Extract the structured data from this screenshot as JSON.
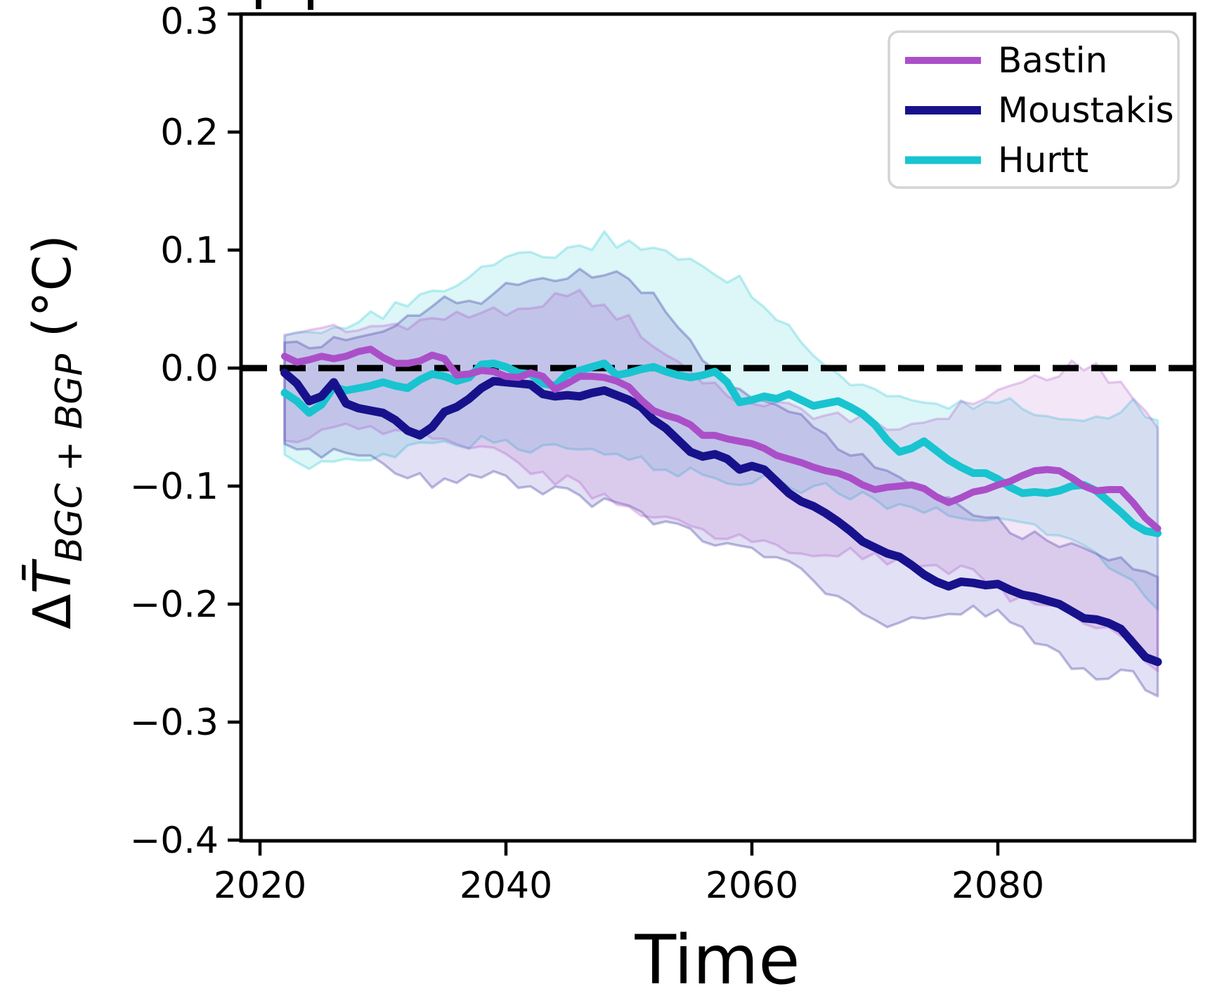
{
  "axes": {
    "xlabel": "Time",
    "ylabel": {
      "main": "ΔT",
      "overline_on_T": true,
      "subscript": "BGC + BGP",
      "unit": "(°C)"
    },
    "x_ticks": [
      {
        "label": "2020",
        "value": 2020
      },
      {
        "label": "2040",
        "value": 2040
      },
      {
        "label": "2060",
        "value": 2060
      },
      {
        "label": "2080",
        "value": 2080
      }
    ],
    "y_ticks": [
      {
        "label": "0.3",
        "value": 0.3
      },
      {
        "label": "0.2",
        "value": 0.2
      },
      {
        "label": "0.1",
        "value": 0.1
      },
      {
        "label": "0.0",
        "value": 0.0
      },
      {
        "label": "−0.1",
        "value": -0.1
      },
      {
        "label": "−0.2",
        "value": -0.2
      },
      {
        "label": "−0.3",
        "value": -0.3
      },
      {
        "label": "−0.4",
        "value": -0.4
      }
    ],
    "xlim": [
      2018.5,
      2096
    ],
    "ylim": [
      -0.4,
      0.3
    ]
  },
  "legend": {
    "position": "upper right",
    "entries": [
      {
        "label": "Bastin",
        "color": "#ab4fc9"
      },
      {
        "label": "Moustakis",
        "color": "#17128c"
      },
      {
        "label": "Hurtt",
        "color": "#18c4d0"
      }
    ]
  },
  "chart_data": {
    "type": "line",
    "title": "",
    "xlabel": "Time",
    "ylabel": "ΔT̄_BGC+BGP (°C)",
    "grid": false,
    "legend_position": "upper right",
    "xlim": [
      2018.5,
      2096
    ],
    "ylim": [
      -0.4,
      0.3
    ],
    "zero_line": {
      "value": 0.0,
      "style": "dashed",
      "color": "#000000"
    },
    "x": [
      2022,
      2023,
      2024,
      2025,
      2026,
      2027,
      2028,
      2029,
      2030,
      2031,
      2032,
      2033,
      2034,
      2035,
      2036,
      2037,
      2038,
      2039,
      2040,
      2041,
      2042,
      2043,
      2044,
      2045,
      2046,
      2047,
      2048,
      2049,
      2050,
      2051,
      2052,
      2053,
      2054,
      2055,
      2056,
      2057,
      2058,
      2059,
      2060,
      2061,
      2062,
      2063,
      2064,
      2065,
      2066,
      2067,
      2068,
      2069,
      2070,
      2071,
      2072,
      2073,
      2074,
      2075,
      2076,
      2077,
      2078,
      2079,
      2080,
      2081,
      2082,
      2083,
      2084,
      2085,
      2086,
      2087,
      2088,
      2089,
      2090,
      2091,
      2092,
      2093
    ],
    "series": [
      {
        "name": "Bastin",
        "color": "#ab4fc9",
        "band_fill": "rgba(171,79,201,0.14)",
        "linewidth": 10,
        "values": [
          0.01,
          0.005,
          0.007,
          0.01,
          0.008,
          0.01,
          0.014,
          0.016,
          0.009,
          0.004,
          0.004,
          0.006,
          0.011,
          0.008,
          -0.006,
          -0.005,
          -0.002,
          -0.003,
          -0.007,
          -0.008,
          -0.004,
          -0.007,
          -0.018,
          -0.013,
          -0.007,
          -0.007,
          -0.008,
          -0.011,
          -0.016,
          -0.027,
          -0.036,
          -0.04,
          -0.043,
          -0.048,
          -0.057,
          -0.057,
          -0.06,
          -0.062,
          -0.064,
          -0.068,
          -0.074,
          -0.077,
          -0.08,
          -0.084,
          -0.087,
          -0.089,
          -0.093,
          -0.099,
          -0.103,
          -0.101,
          -0.1,
          -0.099,
          -0.102,
          -0.109,
          -0.114,
          -0.11,
          -0.105,
          -0.103,
          -0.099,
          -0.096,
          -0.091,
          -0.087,
          -0.086,
          -0.087,
          -0.093,
          -0.1,
          -0.104,
          -0.103,
          -0.103,
          -0.114,
          -0.127,
          -0.136
        ],
        "band_upper": [
          [
            2022,
            0.032
          ],
          [
            2026,
            0.034
          ],
          [
            2030,
            0.036
          ],
          [
            2034,
            0.041
          ],
          [
            2038,
            0.046
          ],
          [
            2042,
            0.055
          ],
          [
            2046,
            0.061
          ],
          [
            2050,
            0.04
          ],
          [
            2052,
            0.02
          ],
          [
            2054,
            0.004
          ],
          [
            2056,
            -0.012
          ],
          [
            2058,
            -0.022
          ],
          [
            2062,
            -0.032
          ],
          [
            2066,
            -0.04
          ],
          [
            2070,
            -0.046
          ],
          [
            2074,
            -0.048
          ],
          [
            2078,
            -0.028
          ],
          [
            2082,
            -0.012
          ],
          [
            2086,
            0.002
          ],
          [
            2088,
            -0.001
          ],
          [
            2090,
            -0.012
          ],
          [
            2093,
            -0.05
          ]
        ],
        "band_lower": [
          [
            2022,
            -0.058
          ],
          [
            2026,
            -0.054
          ],
          [
            2030,
            -0.05
          ],
          [
            2034,
            -0.056
          ],
          [
            2038,
            -0.066
          ],
          [
            2042,
            -0.086
          ],
          [
            2046,
            -0.1
          ],
          [
            2050,
            -0.12
          ],
          [
            2054,
            -0.134
          ],
          [
            2058,
            -0.144
          ],
          [
            2062,
            -0.15
          ],
          [
            2066,
            -0.155
          ],
          [
            2070,
            -0.16
          ],
          [
            2074,
            -0.168
          ],
          [
            2078,
            -0.175
          ],
          [
            2082,
            -0.198
          ],
          [
            2086,
            -0.21
          ],
          [
            2090,
            -0.222
          ],
          [
            2093,
            -0.258
          ]
        ]
      },
      {
        "name": "Moustakis",
        "color": "#17128c",
        "band_fill": "rgba(73,62,187,0.16)",
        "linewidth": 12,
        "values": [
          -0.004,
          -0.013,
          -0.028,
          -0.024,
          -0.012,
          -0.03,
          -0.034,
          -0.036,
          -0.038,
          -0.044,
          -0.053,
          -0.057,
          -0.05,
          -0.037,
          -0.033,
          -0.026,
          -0.017,
          -0.011,
          -0.012,
          -0.013,
          -0.014,
          -0.022,
          -0.024,
          -0.023,
          -0.024,
          -0.021,
          -0.019,
          -0.023,
          -0.027,
          -0.033,
          -0.044,
          -0.051,
          -0.061,
          -0.071,
          -0.075,
          -0.073,
          -0.077,
          -0.086,
          -0.083,
          -0.086,
          -0.096,
          -0.106,
          -0.113,
          -0.117,
          -0.123,
          -0.13,
          -0.138,
          -0.147,
          -0.152,
          -0.157,
          -0.16,
          -0.167,
          -0.175,
          -0.181,
          -0.185,
          -0.181,
          -0.182,
          -0.184,
          -0.183,
          -0.188,
          -0.192,
          -0.194,
          -0.197,
          -0.2,
          -0.206,
          -0.212,
          -0.213,
          -0.216,
          -0.221,
          -0.233,
          -0.245,
          -0.249
        ],
        "band_upper": [
          [
            2022,
            0.016
          ],
          [
            2026,
            0.021
          ],
          [
            2030,
            0.03
          ],
          [
            2034,
            0.056
          ],
          [
            2038,
            0.06
          ],
          [
            2042,
            0.074
          ],
          [
            2046,
            0.083
          ],
          [
            2050,
            0.076
          ],
          [
            2054,
            0.04
          ],
          [
            2056,
            0.01
          ],
          [
            2058,
            -0.018
          ],
          [
            2062,
            -0.032
          ],
          [
            2066,
            -0.056
          ],
          [
            2070,
            -0.086
          ],
          [
            2074,
            -0.102
          ],
          [
            2078,
            -0.12
          ],
          [
            2082,
            -0.14
          ],
          [
            2086,
            -0.152
          ],
          [
            2090,
            -0.163
          ],
          [
            2093,
            -0.175
          ]
        ],
        "band_lower": [
          [
            2022,
            -0.064
          ],
          [
            2026,
            -0.072
          ],
          [
            2030,
            -0.082
          ],
          [
            2034,
            -0.096
          ],
          [
            2038,
            -0.09
          ],
          [
            2042,
            -0.1
          ],
          [
            2046,
            -0.11
          ],
          [
            2050,
            -0.12
          ],
          [
            2054,
            -0.135
          ],
          [
            2058,
            -0.148
          ],
          [
            2062,
            -0.16
          ],
          [
            2066,
            -0.188
          ],
          [
            2070,
            -0.21
          ],
          [
            2072,
            -0.22
          ],
          [
            2074,
            -0.21
          ],
          [
            2076,
            -0.206
          ],
          [
            2080,
            -0.208
          ],
          [
            2084,
            -0.24
          ],
          [
            2088,
            -0.258
          ],
          [
            2091,
            -0.258
          ],
          [
            2093,
            -0.28
          ]
        ]
      },
      {
        "name": "Hurtt",
        "color": "#18c4d0",
        "band_fill": "rgba(24,196,208,0.15)",
        "linewidth": 11,
        "values": [
          -0.021,
          -0.028,
          -0.038,
          -0.031,
          -0.016,
          -0.019,
          -0.017,
          -0.015,
          -0.012,
          -0.015,
          -0.017,
          -0.01,
          -0.005,
          -0.007,
          -0.011,
          -0.008,
          0.003,
          0.004,
          0.001,
          -0.004,
          -0.005,
          -0.013,
          -0.015,
          -0.005,
          -0.002,
          0.001,
          0.004,
          -0.006,
          -0.004,
          -0.001,
          0.001,
          -0.003,
          -0.006,
          -0.008,
          -0.006,
          -0.003,
          -0.012,
          -0.029,
          -0.027,
          -0.024,
          -0.026,
          -0.022,
          -0.027,
          -0.032,
          -0.03,
          -0.028,
          -0.033,
          -0.039,
          -0.048,
          -0.061,
          -0.071,
          -0.068,
          -0.062,
          -0.07,
          -0.078,
          -0.084,
          -0.089,
          -0.089,
          -0.094,
          -0.101,
          -0.106,
          -0.105,
          -0.106,
          -0.104,
          -0.1,
          -0.099,
          -0.104,
          -0.113,
          -0.122,
          -0.132,
          -0.138,
          -0.14
        ],
        "band_upper": [
          [
            2022,
            0.03
          ],
          [
            2026,
            0.036
          ],
          [
            2030,
            0.046
          ],
          [
            2034,
            0.064
          ],
          [
            2038,
            0.086
          ],
          [
            2042,
            0.094
          ],
          [
            2046,
            0.1
          ],
          [
            2048,
            0.11
          ],
          [
            2052,
            0.099
          ],
          [
            2056,
            0.085
          ],
          [
            2059,
            0.074
          ],
          [
            2061,
            0.05
          ],
          [
            2064,
            0.027
          ],
          [
            2066,
            0.005
          ],
          [
            2068,
            -0.012
          ],
          [
            2072,
            -0.026
          ],
          [
            2076,
            -0.03
          ],
          [
            2080,
            -0.03
          ],
          [
            2084,
            -0.036
          ],
          [
            2088,
            -0.043
          ],
          [
            2091,
            -0.03
          ],
          [
            2093,
            -0.042
          ]
        ],
        "band_lower": [
          [
            2022,
            -0.076
          ],
          [
            2024,
            -0.08
          ],
          [
            2026,
            -0.078
          ],
          [
            2030,
            -0.072
          ],
          [
            2034,
            -0.067
          ],
          [
            2038,
            -0.061
          ],
          [
            2042,
            -0.066
          ],
          [
            2046,
            -0.071
          ],
          [
            2050,
            -0.079
          ],
          [
            2054,
            -0.086
          ],
          [
            2058,
            -0.092
          ],
          [
            2062,
            -0.098
          ],
          [
            2066,
            -0.103
          ],
          [
            2070,
            -0.112
          ],
          [
            2074,
            -0.118
          ],
          [
            2078,
            -0.124
          ],
          [
            2082,
            -0.132
          ],
          [
            2086,
            -0.148
          ],
          [
            2090,
            -0.172
          ],
          [
            2093,
            -0.205
          ]
        ]
      }
    ]
  }
}
